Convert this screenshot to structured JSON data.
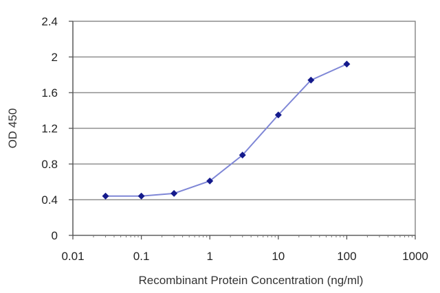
{
  "chart_data": {
    "type": "line",
    "title": "",
    "xlabel": "Recombinant Protein Concentration (ng/ml)",
    "ylabel": "OD 450",
    "x_scale": "log",
    "xlim": [
      0.01,
      1000
    ],
    "ylim": [
      0,
      2.4
    ],
    "x_ticks": [
      0.01,
      0.1,
      1,
      10,
      100,
      1000
    ],
    "x_tick_labels": [
      "0.01",
      "0.1",
      "1",
      "10",
      "100",
      "1000"
    ],
    "y_ticks": [
      0,
      0.4,
      0.8,
      1.2,
      1.6,
      2,
      2.4
    ],
    "y_tick_labels": [
      "0",
      "0.4",
      "0.8",
      "1.2",
      "1.6",
      "2",
      "2.4"
    ],
    "grid": "horizontal",
    "legend": "none",
    "series": [
      {
        "x": [
          0.03,
          0.1,
          0.3,
          1,
          3,
          10,
          30,
          100
        ],
        "y": [
          0.44,
          0.44,
          0.47,
          0.61,
          0.9,
          1.35,
          1.74,
          1.92
        ]
      }
    ],
    "colors": {
      "line": "#7e86d6",
      "marker": "#141a8c",
      "grid": "#7a7a7a",
      "frame": "#7a7a7a"
    }
  }
}
